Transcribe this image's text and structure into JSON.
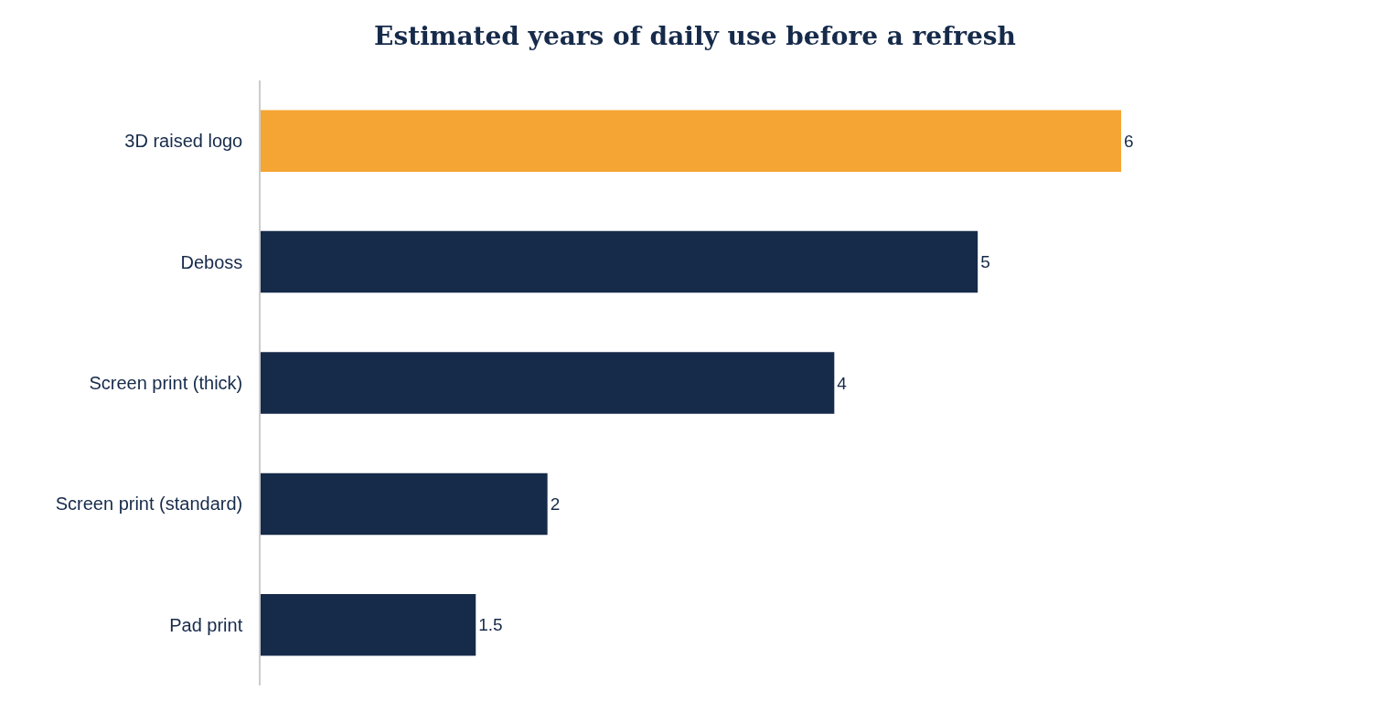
{
  "chart_data": {
    "type": "bar",
    "orientation": "horizontal",
    "title": "Estimated years of daily use before a refresh",
    "categories": [
      "3D raised logo",
      "Deboss",
      "Screen print (thick)",
      "Screen print (standard)",
      "Pad print"
    ],
    "values": [
      6,
      5,
      4,
      2,
      1.5
    ],
    "colors": [
      "#f5a533",
      "#162a4a",
      "#162a4a",
      "#162a4a",
      "#162a4a"
    ],
    "data_labels": true
  }
}
